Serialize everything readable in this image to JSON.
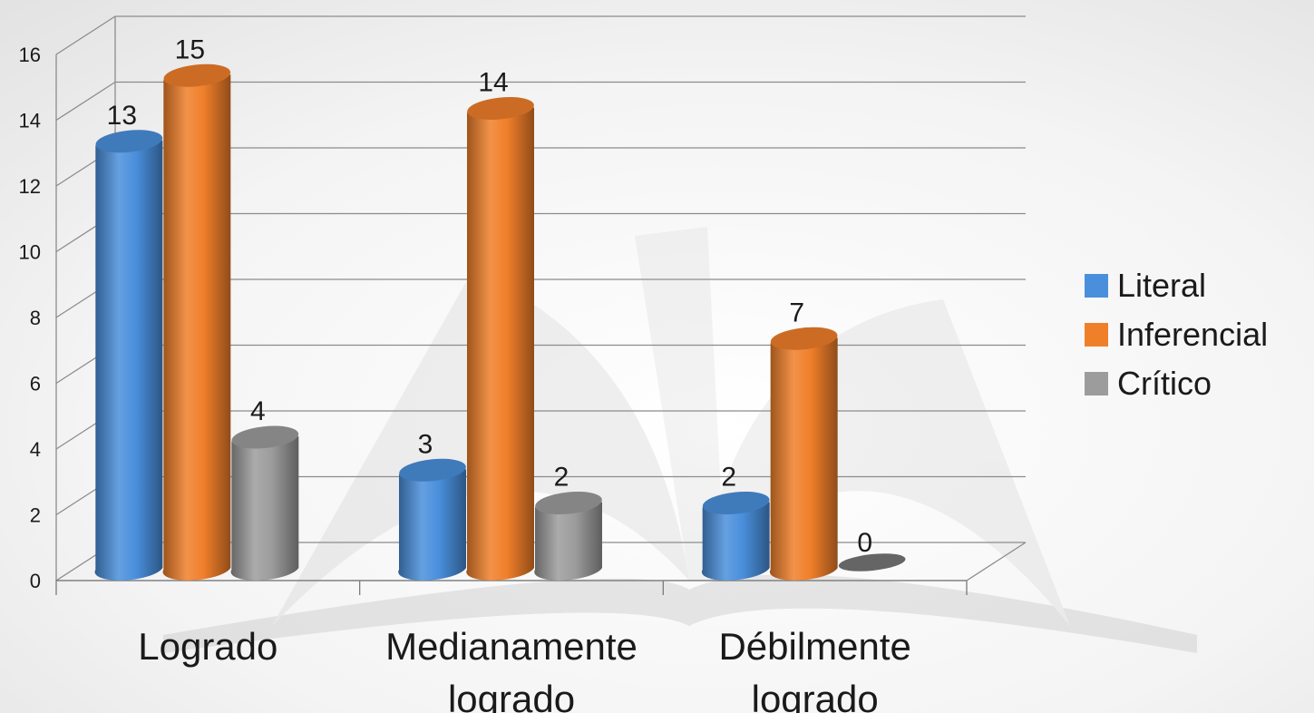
{
  "chart_data": {
    "type": "bar",
    "categories": [
      [
        "Logrado"
      ],
      [
        "Medianamente",
        "logrado"
      ],
      [
        "Débilmente",
        "logrado"
      ]
    ],
    "series": [
      {
        "name": "Literal",
        "values": [
          13,
          3,
          2
        ],
        "color": "#4a8fdc"
      },
      {
        "name": "Inferencial",
        "values": [
          15,
          14,
          7
        ],
        "color": "#f07f2a"
      },
      {
        "name": "Crítico",
        "values": [
          4,
          2,
          0
        ],
        "color": "#9c9c9c"
      }
    ],
    "data_labels": [
      [
        "13",
        "3",
        "2"
      ],
      [
        "15",
        "14",
        "7"
      ],
      [
        "4",
        "2",
        "0"
      ]
    ],
    "yticks": [
      "0",
      "2",
      "4",
      "6",
      "8",
      "10",
      "12",
      "14",
      "16"
    ],
    "ylim": [
      0,
      16
    ],
    "grid": true,
    "legend_position": "right",
    "style": "3d-cylinder"
  }
}
